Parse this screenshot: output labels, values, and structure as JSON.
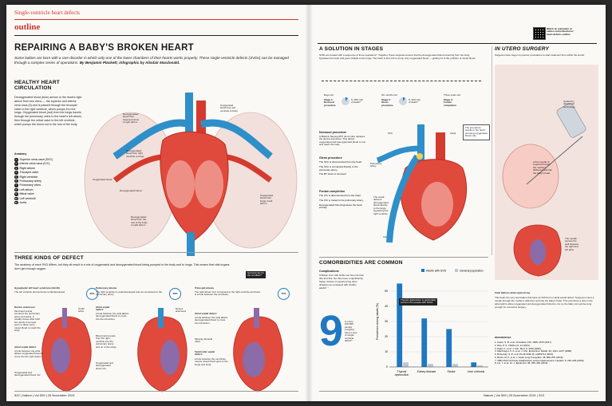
{
  "header": {
    "kicker": "Single-ventricle heart defects",
    "section": "outline",
    "qr_text": "Watch an animation at\nnature.com/collections/\nheart-defects-outline"
  },
  "title": "REPAIRING A BABY'S BROKEN HEART",
  "standfirst": "Some babies are born with a rare disorder in which only one of the lower chambers of their hearts works properly. These single-ventricle defects (SVDs) can be managed through a complex series of operations.",
  "byline": "By Benjamin Plackett; infographic by Alisdair Macdonald.",
  "healthy": {
    "heading": "HEALTHY HEART\nCIRCULATION",
    "body": "Deoxygenated blood (blue) arrives in the heart's right atrium from two veins — the superior and inferior vena cava (5) and is passed through the tricuspid valve to the right ventricle, which pumps it to the lungs. Oxygenated blood (red) from the lungs travels through the pulmonary veins to the heart's left atrium, then through the mitral valve to the left ventricle, which pumps the blood out to the rest of the body.",
    "anatomy_title": "Anatomy",
    "anatomy": [
      "Superior vena cava (SVC)",
      "Inferior vena cava (IVC)",
      "Right atrium",
      "Tricuspid valve",
      "Right ventricle",
      "Pulmonary artery",
      "Pulmonary veins",
      "Left atrium",
      "Mitral valve",
      "Left ventricle",
      "Aorta"
    ],
    "callouts": {
      "deox_head": "Deoxygenated\nblood from\nhead and arms\nto right atrium",
      "ox_left": "Oxygenated\nblood from left\nventricle to body",
      "deox_right": "Deoxygenated\nblood from right\nventricle to lungs",
      "ox_blood": "Oxygenated blood",
      "deox_blood": "Deoxygenated blood",
      "ox_lungs": "Oxygenated\nblood from\nlungs to left\natrium",
      "deox_lower": "Deoxygenated\nblood from the\nrest of the body\nto right atrium"
    }
  },
  "defects": {
    "heading": "THREE KINDS OF DEFECT",
    "body": "The anatomy of each SVD differs, but they all result in a mix of oxygenated and deoxygenated blood being pumped to the body and to lungs. This means that vital organs don't get enough oxygen.",
    "survival_label": "Survival rate for\nthe condition*",
    "items": [
      {
        "name": "Hypoplastic left heart syndrome (HLHS)",
        "desc": "The left ventricle and aorta are underdeveloped.",
        "rate": "60%"
      },
      {
        "name": "Pulmonary atresia",
        "desc": "The right ventricle is underdeveloped and not connected to the pulmonary artery.",
        "rate": "58%"
      },
      {
        "name": "Tricuspid atresia",
        "desc": "The right atrium isn't connected to the right ventricle and there is a hole between the ventricles.",
        "rate": "75%"
      }
    ],
    "labels": {
      "ductus1": "Ductus arteriosus:",
      "ductus1_body": "this blood vessel connects the pulmonary artery and aorta. It usually closes after birth but needs to be kept open to allow some mixed blood to reach the body.",
      "small_aorta": "Small\naorta",
      "asd1": "Atrial septal defect:",
      "asd1_body": "a hole between the atria allows oxygenated blood to cross into the right atrium.",
      "oxdeox1": "Oxygenated and\ndeoxygenated blood mix.",
      "asd2": "Atrial septal\ndefect:",
      "asd2_body": "a hole between the atria allows deoxygenated blood to cross into the left atrium.",
      "ductus2": "Ductus\narteriosus",
      "blood_cannot": "Blood cannot pass\nfrom the right\nventricle into the\npulmonary artery\nand on to the lungs.",
      "oxdeox2": "Oxygenated and\ndeoxygenated\nblood mix.",
      "asd3": "Atrial septal defect:",
      "asd3_body": "a hole between the atria allows deoxygenated blood to cross into left atrium.",
      "missing_valve": "Missing tricuspid\nvalve",
      "vsd": "Ventricular septal\ndefect:",
      "vsd_body": "a hole between the ventricles means mixed blood goes to the lungs and body."
    }
  },
  "stages": {
    "heading": "A SOLUTION IN STAGES",
    "body": "SVDs are treated with a sequence of three operations*. Together, these surgeries ensure that the deoxygenated blood returning from the body bypasses the heart and goes straight to the lungs. The heart is then left to pump only oxygenated blood — getting rid of the problem of mixed blood.",
    "timeline": [
      {
        "age": "Days old",
        "stage": "Stage 1:\nNorwood\nprocedure",
        "risk": "5–15% risk\nof death*"
      },
      {
        "age": "Six months old",
        "stage": "Stage 2:\nGlenn\nprocedure",
        "risk": "5–10% risk\nof death*"
      },
      {
        "age": "Three years old",
        "stage": "Stage 3:\nFontan\ncompletion",
        "risk": ""
      }
    ],
    "norwood_title": "Norwood procedure",
    "norwood": [
      "A Blalock-Taussig (BT) shunt tube replaces the ductus arteriosus. This allows oxygenated and deoxygenated blood to mix and reach the body."
    ],
    "glenn_title": "Glenn procedure",
    "glenn": [
      "The SVC is disconnected from the heart.",
      "The SVC is connected directly to the pulmonary artery.",
      "The BT shunt is removed."
    ],
    "fontan_title": "Fontan completion",
    "fontan": [
      "The IVC is disconnected from the heart.",
      "The IVC is routed to the pulmonary artery.",
      "Deoxygenated blood bypasses the heart entirely."
    ],
    "labels": {
      "procedure_result": "The procedure\nresults in the heart\npumping oxygenated\nblood only.",
      "svc": "SVC",
      "aorta": "Aorta",
      "pulm_artery": "Pulmonary\nartery",
      "result": "The result:\ndelivers\ndeoxygenated\nblood directly\nto the lungs,\nbypassing the\nright ventricle.",
      "ivc": "IVC"
    }
  },
  "utero": {
    "heading": "IN UTERO SURGERY",
    "body": "Surgeons have begun to pioneer procedures to start treatment from within the womb.",
    "guided": "Guided by\nultrasound\ntechnology.",
    "fine_needle": "A fine needle is\ninserted through\nthe mother's\nabdomen and into\nthe baby's heart.",
    "needle_pierces": "The needle\npierces the\nwall between\nthe right and\nleft atria.",
    "balloon_title": "Fetal balloon atrial septostomy",
    "balloon_body": "This helps the very few babies that have an SVD but no atrial septal defect. Surgeons insert a needle through the mother's abdomen and into the baby's heart. This punctures a hole in the atrial wall to allow oxygenated and deoxygenated blood to mix so the baby can survive long enough for corrective surgery.",
    "refs_title": "REFERENCES",
    "refs": [
      "1. Feder, S. B. et al. Circulation 136, 1665–1675 (2017).",
      "2. Rao, P. S. Children 8, 12 (2021).",
      "3. Pajot, C. et al. J. Clin. Med. 9, 4160 (2020).",
      "4. MacGregor, K. A. et al. J. Clin. Endocrinol. Metab. 93, 1221–1227 (2008).",
      "5. Rzhevsky, S. R. et al. PLoS ONE 16, e0253712 (2021).",
      "6. Burch, M. A. et al. J. Heart Lung Transplant. 38, 866–876 (2019).",
      "7. GBD 2013 Cirrhosis Collaborators Lancet Gastroenterol. Hepatol. 5, 245–266 (2020).",
      "8. Liu, Y. et al. Int. J. Epidemiol. 48, 455–463 (2019)."
    ]
  },
  "comorbid": {
    "heading": "COMORBIDITIES ARE COMMON",
    "complications_title": "Complications",
    "complications": "Children born with SVDs can live into their 30s and 40s, but they have a significantly higher chance of experiencing other diseases as compared with healthy adults³⁻⁷.",
    "big_number": "9",
    "big_text": "in every\n100,000\npeople\n(roughly)\nhave a type\nof single-\nventricle\ndefect⁸.",
    "callout": "Thyroid dysfunction is particularly\ncommon for people with SVDs"
  },
  "chart_data": {
    "type": "bar",
    "categories": [
      "Thyroid\ndysfunction",
      "Kidney disease",
      "Stroke",
      "Liver cirrhosis"
    ],
    "series": [
      {
        "name": "Adults with SVD",
        "values": [
          55,
          32,
          25,
          3
        ]
      },
      {
        "name": "General population",
        "values": [
          3,
          2,
          2,
          1
        ]
      }
    ],
    "ylabel": "Prevalence among adults (%)",
    "ylim": [
      0,
      60
    ],
    "yticks": [
      0,
      10,
      20,
      30,
      40,
      50
    ],
    "colors": [
      "#1f78c1",
      "#b9c7d6"
    ],
    "legend": "top-right"
  },
  "footer": {
    "left": "922 | Nature | Vol 599 | 25 November 2021",
    "right": "Nature | Vol 599 | 25 November 2021 | 923"
  }
}
